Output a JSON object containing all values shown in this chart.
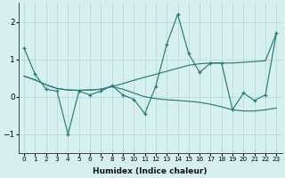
{
  "xlabel": "Humidex (Indice chaleur)",
  "x": [
    0,
    1,
    2,
    3,
    4,
    5,
    6,
    7,
    8,
    9,
    10,
    11,
    12,
    13,
    14,
    15,
    16,
    17,
    18,
    19,
    20,
    21,
    22,
    23
  ],
  "line_main": [
    1.3,
    0.6,
    0.2,
    0.15,
    -1.0,
    0.15,
    0.05,
    0.15,
    0.3,
    0.05,
    -0.07,
    -0.45,
    0.28,
    1.4,
    2.2,
    1.15,
    0.65,
    0.9,
    0.9,
    -0.35,
    0.1,
    -0.1,
    0.05,
    1.7
  ],
  "trend_up": [
    0.55,
    0.45,
    0.32,
    0.22,
    0.18,
    0.17,
    0.18,
    0.2,
    0.27,
    0.35,
    0.44,
    0.52,
    0.6,
    0.68,
    0.76,
    0.84,
    0.88,
    0.9,
    0.9,
    0.9,
    0.92,
    0.94,
    0.96,
    1.7
  ],
  "trend_down": [
    0.55,
    0.45,
    0.32,
    0.22,
    0.18,
    0.17,
    0.18,
    0.2,
    0.27,
    0.2,
    0.1,
    0.0,
    -0.05,
    -0.08,
    -0.1,
    -0.12,
    -0.15,
    -0.2,
    -0.27,
    -0.35,
    -0.38,
    -0.38,
    -0.35,
    -0.3
  ],
  "color": "#2a7a7a",
  "bg_color": "#d6f0f0",
  "grid_color": "#b8dada",
  "ylim": [
    -1.5,
    2.5
  ],
  "yticks": [
    -1,
    0,
    1,
    2
  ]
}
